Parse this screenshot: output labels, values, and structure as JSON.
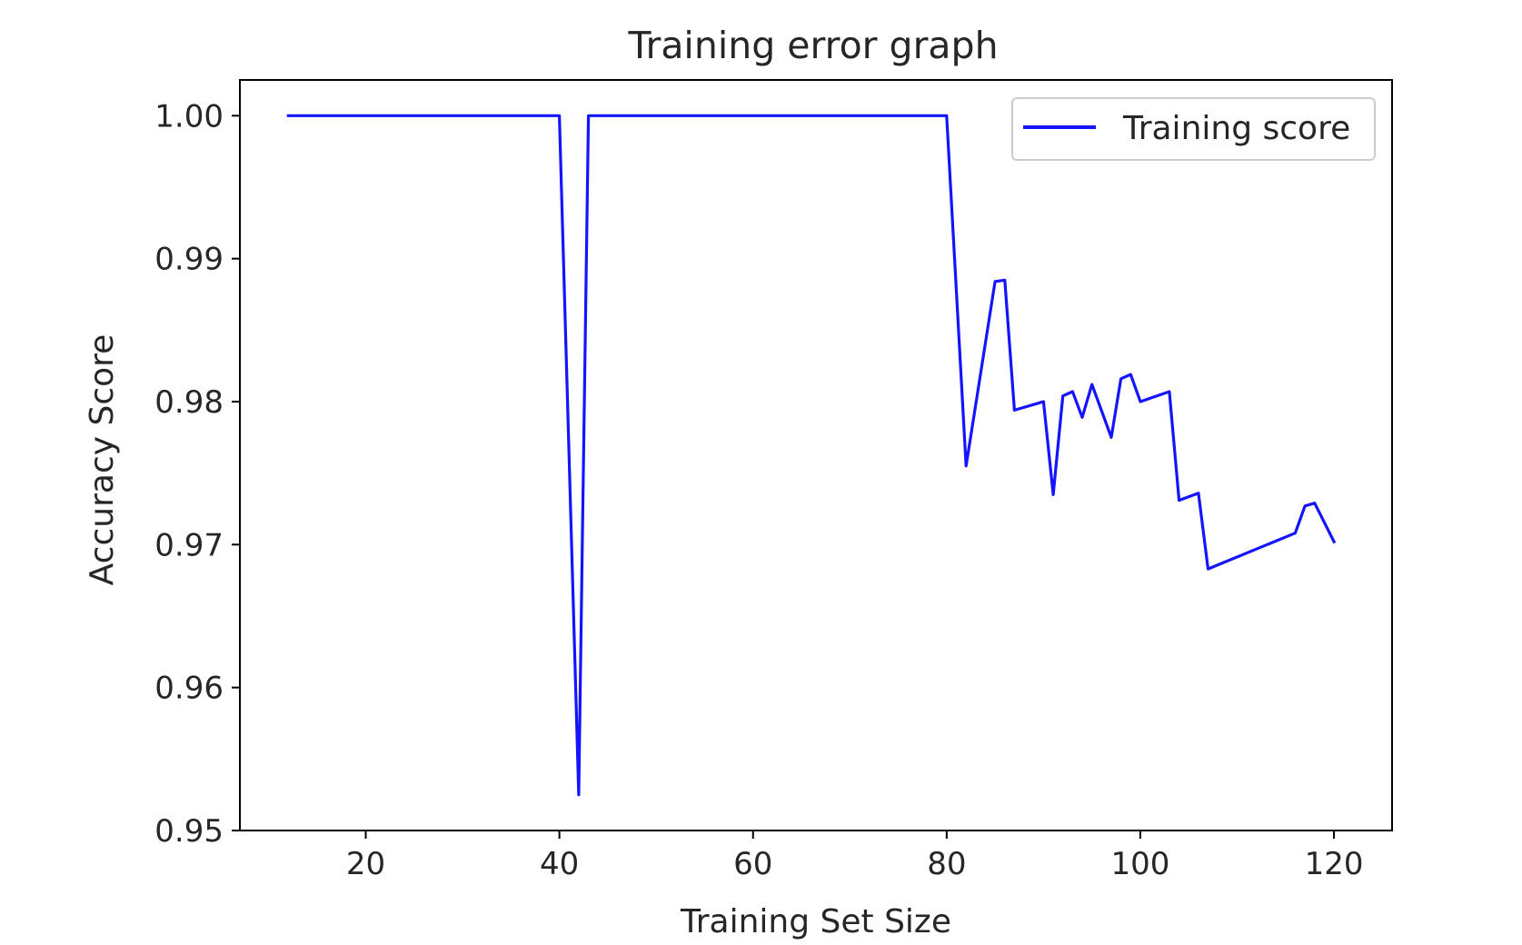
{
  "chart_data": {
    "type": "line",
    "title": "Training error graph",
    "xlabel": "Training Set Size",
    "ylabel": "Accuracy Score",
    "xlim": [
      7,
      126
    ],
    "ylim": [
      0.95,
      1.0025
    ],
    "xticks": [
      20,
      40,
      60,
      80,
      100,
      120
    ],
    "xtick_labels": [
      "20",
      "40",
      "60",
      "80",
      "100",
      "120"
    ],
    "yticks": [
      0.95,
      0.96,
      0.97,
      0.98,
      0.99,
      1.0
    ],
    "ytick_labels": [
      "0.95",
      "0.96",
      "0.97",
      "0.98",
      "0.99",
      "1.00"
    ],
    "grid": false,
    "legend_position": "top-right",
    "series": [
      {
        "name": "Training score",
        "color": "#1414ff",
        "x": [
          12,
          40,
          42,
          43,
          80,
          82,
          85,
          86,
          87,
          90,
          91,
          92,
          93,
          94,
          95,
          97,
          98,
          99,
          100,
          103,
          104,
          106,
          107,
          116,
          117,
          118,
          120
        ],
        "y": [
          1.0,
          1.0,
          0.9525,
          1.0,
          1.0,
          0.9755,
          0.9884,
          0.9885,
          0.9794,
          0.98,
          0.9735,
          0.9804,
          0.9807,
          0.9789,
          0.9812,
          0.9775,
          0.9816,
          0.9819,
          0.98,
          0.9807,
          0.9731,
          0.9736,
          0.9683,
          0.9708,
          0.9727,
          0.9729,
          0.9702
        ]
      }
    ]
  }
}
